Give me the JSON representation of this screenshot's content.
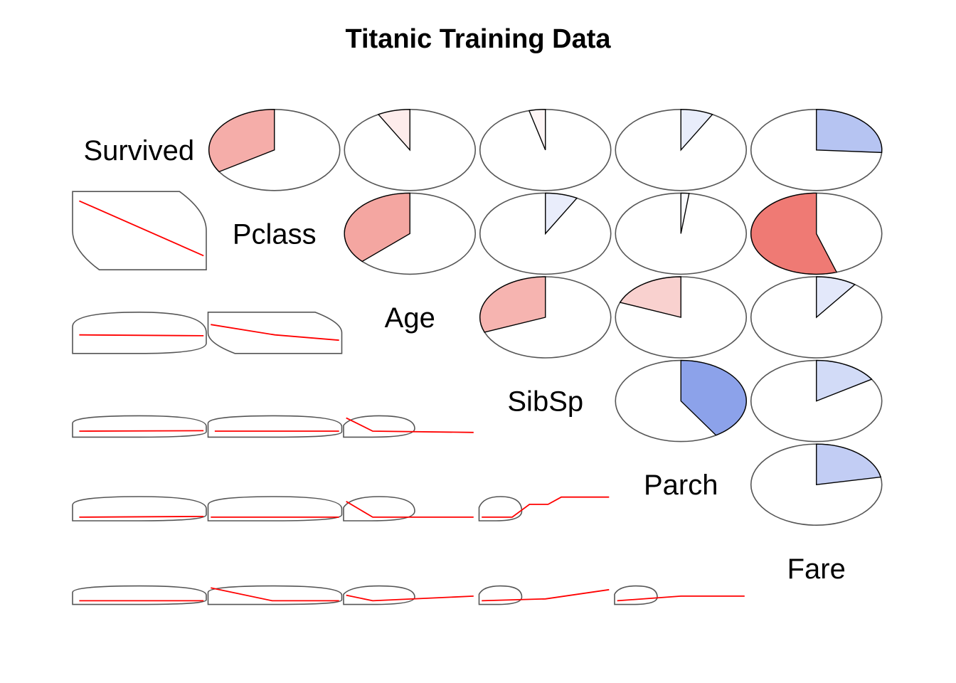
{
  "title": "Titanic Training Data",
  "chart_data": {
    "type": "corrgram",
    "title": "Titanic Training Data",
    "variables": [
      "Survived",
      "Pclass",
      "Age",
      "SibSp",
      "Parch",
      "Fare"
    ],
    "upper_panel": "pie",
    "lower_panel": "ellipse",
    "color_negative": "#E8453C",
    "color_positive": "#2850D8",
    "smoother_color": "#FF0000",
    "correlations": [
      {
        "row": "Survived",
        "col": "Pclass",
        "r": -0.34
      },
      {
        "row": "Survived",
        "col": "Age",
        "r": -0.08
      },
      {
        "row": "Survived",
        "col": "SibSp",
        "r": -0.04
      },
      {
        "row": "Survived",
        "col": "Parch",
        "r": 0.08
      },
      {
        "row": "Survived",
        "col": "Fare",
        "r": 0.26
      },
      {
        "row": "Pclass",
        "col": "Age",
        "r": -0.37
      },
      {
        "row": "Pclass",
        "col": "SibSp",
        "r": 0.08
      },
      {
        "row": "Pclass",
        "col": "Parch",
        "r": 0.02
      },
      {
        "row": "Pclass",
        "col": "Fare",
        "r": -0.55
      },
      {
        "row": "Age",
        "col": "SibSp",
        "r": -0.31
      },
      {
        "row": "Age",
        "col": "Parch",
        "r": -0.19
      },
      {
        "row": "Age",
        "col": "Fare",
        "r": 0.1
      },
      {
        "row": "SibSp",
        "col": "Parch",
        "r": 0.41
      },
      {
        "row": "SibSp",
        "col": "Fare",
        "r": 0.16
      },
      {
        "row": "Parch",
        "col": "Fare",
        "r": 0.22
      }
    ]
  }
}
